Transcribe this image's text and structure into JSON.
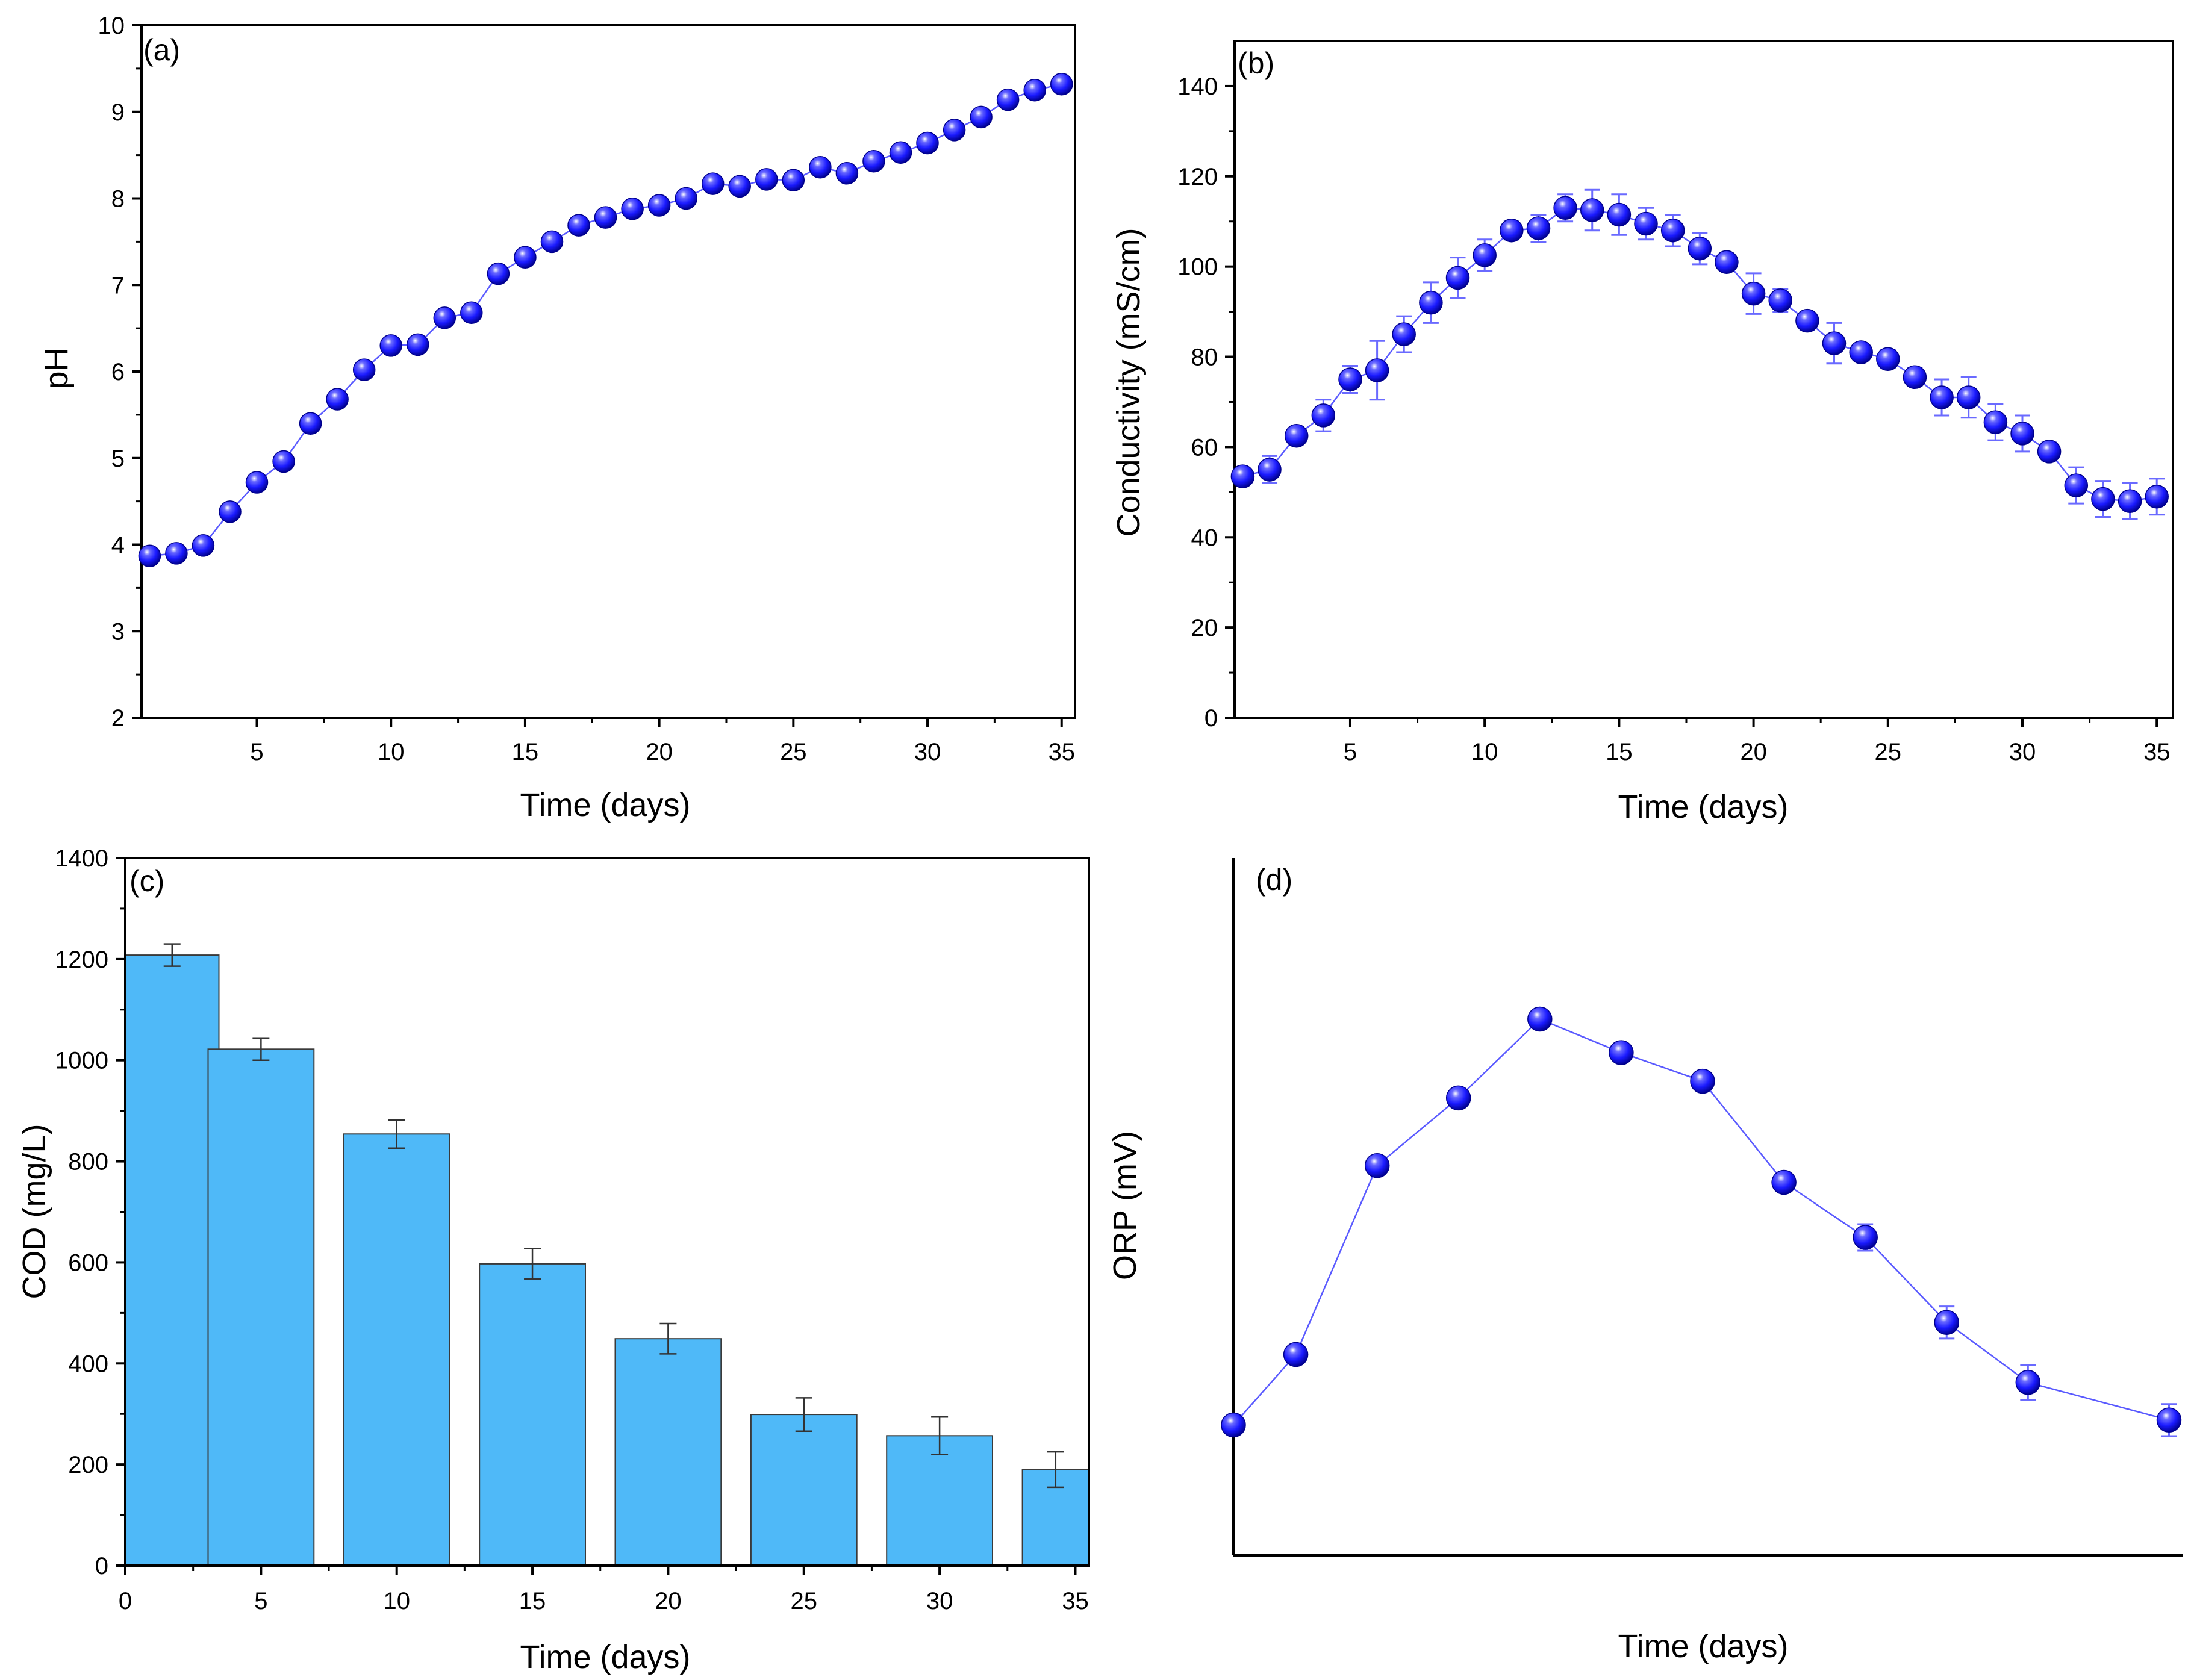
{
  "colors": {
    "marker_fill": "#1a1aff",
    "marker_dark": "#00008b",
    "marker_highlight": "#ffffff",
    "line": "#5a5aff",
    "error_bar_marker": "#6a6aff",
    "bar_fill": "#4fb9f8",
    "bar_stroke": "#3a3a3a",
    "error_bar_bar": "#333333",
    "axis": "#000000"
  },
  "chart_data": [
    {
      "id": "a",
      "type": "line",
      "label": "(a)",
      "xlabel": "Time (days)",
      "ylabel": "pH",
      "xlim": [
        0.7,
        35.5
      ],
      "ylim": [
        2,
        10
      ],
      "xticks": [
        5,
        10,
        15,
        20,
        25,
        30,
        35
      ],
      "yticks": [
        2,
        3,
        4,
        5,
        6,
        7,
        8,
        9,
        10
      ],
      "xtick_labels": [
        "5",
        "10",
        "15",
        "20",
        "25",
        "30",
        "35"
      ],
      "ytick_labels": [
        "2",
        "3",
        "4",
        "5",
        "6",
        "7",
        "8",
        "9",
        "10"
      ],
      "series": [
        {
          "name": "pH",
          "x": [
            1,
            2,
            3,
            4,
            5,
            6,
            7,
            8,
            9,
            10,
            11,
            12,
            13,
            14,
            15,
            16,
            17,
            18,
            19,
            20,
            21,
            22,
            23,
            24,
            25,
            26,
            27,
            28,
            29,
            30,
            31,
            32,
            33,
            34,
            35
          ],
          "y": [
            3.87,
            3.9,
            3.99,
            4.38,
            4.72,
            4.96,
            5.4,
            5.68,
            6.02,
            6.3,
            6.31,
            6.62,
            6.68,
            7.13,
            7.32,
            7.5,
            7.69,
            7.78,
            7.88,
            7.92,
            8.0,
            8.17,
            8.14,
            8.22,
            8.21,
            8.36,
            8.29,
            8.43,
            8.53,
            8.64,
            8.79,
            8.94,
            9.14,
            9.25,
            9.32
          ],
          "error": []
        }
      ]
    },
    {
      "id": "b",
      "type": "line",
      "label": "(b)",
      "xlabel": "Time (days)",
      "ylabel": "Conductivity (mS/cm)",
      "xlim": [
        0.7,
        35.6
      ],
      "ylim": [
        0,
        150
      ],
      "xticks": [
        5,
        10,
        15,
        20,
        25,
        30,
        35
      ],
      "yticks": [
        0,
        20,
        40,
        60,
        80,
        100,
        120,
        140
      ],
      "xtick_labels": [
        "5",
        "10",
        "15",
        "20",
        "25",
        "30",
        "35"
      ],
      "ytick_labels": [
        "0",
        "20",
        "40",
        "60",
        "80",
        "100",
        "120",
        "140"
      ],
      "series": [
        {
          "name": "Conductivity",
          "x": [
            1,
            2,
            3,
            4,
            5,
            6,
            7,
            8,
            9,
            10,
            11,
            12,
            13,
            14,
            15,
            16,
            17,
            18,
            19,
            20,
            21,
            22,
            23,
            24,
            25,
            26,
            27,
            28,
            29,
            30,
            31,
            32,
            33,
            34,
            35
          ],
          "y": [
            53.5,
            55,
            62.5,
            67,
            75,
            77,
            85,
            92,
            97.5,
            102.5,
            108,
            108.5,
            113,
            112.5,
            111.5,
            109.5,
            108,
            104,
            101,
            94,
            92.5,
            88,
            83,
            81,
            79.5,
            75.5,
            71,
            71,
            65.5,
            63,
            59,
            51.5,
            48.5,
            48,
            49
          ],
          "error": [
            1.5,
            3,
            1.5,
            3.5,
            3,
            6.5,
            4,
            4.5,
            4.5,
            3.5,
            2,
            3,
            3,
            4.5,
            4.5,
            3.5,
            3.5,
            3.5,
            1.5,
            4.5,
            2.5,
            2,
            4.5,
            1.5,
            2,
            2,
            4,
            4.5,
            4,
            4,
            2,
            4,
            4,
            4,
            4
          ]
        }
      ]
    },
    {
      "id": "c",
      "type": "bar",
      "label": "(c)",
      "xlabel": "Time (days)",
      "ylabel": "COD (mg/L)",
      "xlim": [
        0,
        35.5
      ],
      "ylim": [
        0,
        1400
      ],
      "xticks": [
        0,
        5,
        10,
        15,
        20,
        25,
        30,
        35
      ],
      "yticks": [
        0,
        200,
        400,
        600,
        800,
        1000,
        1200,
        1400
      ],
      "xtick_labels": [
        "0",
        "5",
        "10",
        "15",
        "20",
        "25",
        "30",
        "35"
      ],
      "ytick_labels": [
        "0",
        "200",
        "400",
        "600",
        "800",
        "1000",
        "1200",
        "1400"
      ],
      "bar_width_days": 3.9,
      "series": [
        {
          "name": "COD",
          "x": [
            1.5,
            5,
            10,
            15,
            20,
            25,
            30,
            35
          ],
          "y": [
            1208,
            1022,
            854,
            597,
            449,
            299,
            257,
            190
          ],
          "error": [
            22,
            22,
            28,
            30,
            30,
            33,
            37,
            35
          ]
        }
      ]
    },
    {
      "id": "d",
      "type": "line",
      "label": "(d)",
      "xlabel": "Time (days)",
      "ylabel": "ORP (mV)",
      "xlim": [
        0,
        35
      ],
      "ylim": [
        0,
        100
      ],
      "xticks": [],
      "yticks": [],
      "xtick_labels": [],
      "ytick_labels": [],
      "series": [
        {
          "name": "ORP",
          "x": [
            0,
            2.3,
            5.3,
            8.3,
            11.3,
            14.3,
            17.3,
            20.3,
            23.3,
            26.3,
            29.3,
            34.5
          ],
          "y": [
            18.7,
            28.8,
            55.9,
            65.6,
            76.9,
            72.1,
            68.0,
            53.5,
            45.6,
            33.4,
            24.8,
            19.4
          ],
          "error": [
            0.8,
            0.8,
            0.8,
            0.8,
            0.8,
            0.8,
            0.8,
            0.8,
            1.9,
            2.3,
            2.5,
            2.3
          ]
        }
      ]
    }
  ]
}
